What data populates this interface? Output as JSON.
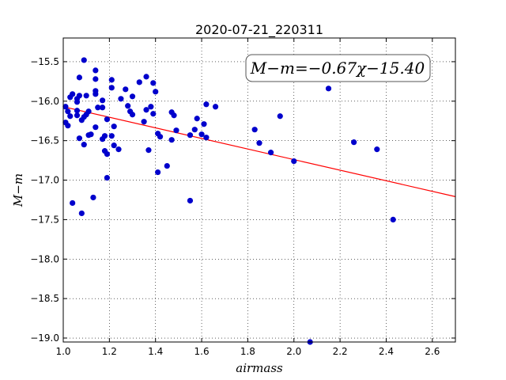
{
  "chart_data": {
    "type": "scatter",
    "title": "2020-07-21_220311",
    "xlabel": "airmass",
    "ylabel": "M−m",
    "xlim": [
      1.0,
      2.7
    ],
    "ylim": [
      -19.05,
      -15.2
    ],
    "y_inverted": true,
    "grid": true,
    "xticks": [
      "1.0",
      "1.2",
      "1.4",
      "1.6",
      "1.8",
      "2.0",
      "2.2",
      "2.4",
      "2.6"
    ],
    "yticks": [
      "−15.5",
      "−16.0",
      "−16.5",
      "−17.0",
      "−17.5",
      "−18.0",
      "−18.5",
      "−19.0"
    ],
    "annotation": "M−m=−0.67χ−15.40",
    "fit": {
      "slope": -0.67,
      "intercept": -15.4,
      "color": "#ff0000"
    },
    "point_color": "#0000cc",
    "points": [
      [
        1.01,
        -16.27
      ],
      [
        1.01,
        -16.07
      ],
      [
        1.02,
        -16.31
      ],
      [
        1.02,
        -16.13
      ],
      [
        1.03,
        -16.19
      ],
      [
        1.03,
        -15.95
      ],
      [
        1.04,
        -15.91
      ],
      [
        1.04,
        -17.29
      ],
      [
        1.06,
        -15.97
      ],
      [
        1.06,
        -16.01
      ],
      [
        1.06,
        -16.18
      ],
      [
        1.06,
        -16.12
      ],
      [
        1.07,
        -15.7
      ],
      [
        1.07,
        -15.93
      ],
      [
        1.07,
        -16.47
      ],
      [
        1.08,
        -17.42
      ],
      [
        1.08,
        -16.24
      ],
      [
        1.09,
        -15.48
      ],
      [
        1.09,
        -16.2
      ],
      [
        1.09,
        -16.55
      ],
      [
        1.1,
        -16.17
      ],
      [
        1.1,
        -15.93
      ],
      [
        1.11,
        -16.43
      ],
      [
        1.11,
        -16.13
      ],
      [
        1.12,
        -16.42
      ],
      [
        1.13,
        -17.22
      ],
      [
        1.14,
        -15.61
      ],
      [
        1.14,
        -15.72
      ],
      [
        1.14,
        -15.87
      ],
      [
        1.14,
        -15.91
      ],
      [
        1.14,
        -16.33
      ],
      [
        1.15,
        -16.08
      ],
      [
        1.17,
        -16.08
      ],
      [
        1.17,
        -16.48
      ],
      [
        1.17,
        -15.99
      ],
      [
        1.18,
        -16.63
      ],
      [
        1.18,
        -16.44
      ],
      [
        1.19,
        -16.23
      ],
      [
        1.19,
        -16.67
      ],
      [
        1.19,
        -16.97
      ],
      [
        1.21,
        -15.73
      ],
      [
        1.21,
        -15.83
      ],
      [
        1.21,
        -16.44
      ],
      [
        1.22,
        -16.32
      ],
      [
        1.22,
        -16.56
      ],
      [
        1.24,
        -16.61
      ],
      [
        1.25,
        -15.97
      ],
      [
        1.27,
        -15.85
      ],
      [
        1.28,
        -16.06
      ],
      [
        1.29,
        -16.13
      ],
      [
        1.3,
        -15.94
      ],
      [
        1.3,
        -16.17
      ],
      [
        1.33,
        -15.76
      ],
      [
        1.35,
        -16.26
      ],
      [
        1.36,
        -16.11
      ],
      [
        1.36,
        -15.69
      ],
      [
        1.37,
        -16.62
      ],
      [
        1.38,
        -16.07
      ],
      [
        1.39,
        -16.16
      ],
      [
        1.39,
        -15.77
      ],
      [
        1.4,
        -15.88
      ],
      [
        1.41,
        -16.41
      ],
      [
        1.41,
        -16.9
      ],
      [
        1.42,
        -16.45
      ],
      [
        1.45,
        -16.82
      ],
      [
        1.47,
        -16.49
      ],
      [
        1.47,
        -16.14
      ],
      [
        1.48,
        -16.18
      ],
      [
        1.49,
        -16.37
      ],
      [
        1.55,
        -17.26
      ],
      [
        1.55,
        -16.43
      ],
      [
        1.57,
        -16.36
      ],
      [
        1.58,
        -16.22
      ],
      [
        1.6,
        -16.42
      ],
      [
        1.61,
        -16.29
      ],
      [
        1.62,
        -16.04
      ],
      [
        1.62,
        -16.46
      ],
      [
        1.66,
        -16.07
      ],
      [
        1.83,
        -16.36
      ],
      [
        1.85,
        -16.53
      ],
      [
        1.9,
        -16.65
      ],
      [
        1.94,
        -16.19
      ],
      [
        2.0,
        -16.76
      ],
      [
        2.07,
        -19.05
      ],
      [
        2.15,
        -15.84
      ],
      [
        2.26,
        -16.52
      ],
      [
        2.36,
        -16.61
      ],
      [
        2.43,
        -17.5
      ]
    ]
  }
}
